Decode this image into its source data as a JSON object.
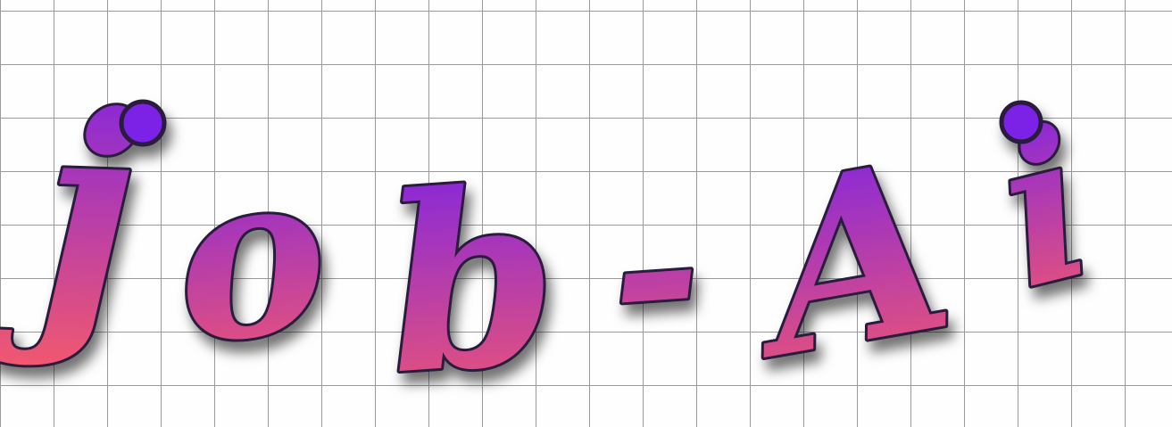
{
  "logo": {
    "text": "job-Ai",
    "letters": [
      {
        "char": "j"
      },
      {
        "char": "o"
      },
      {
        "char": "b"
      },
      {
        "char": "-"
      },
      {
        "char": "A"
      },
      {
        "char": "i"
      }
    ]
  },
  "colors": {
    "letter_gradient_top": "#7b22e6",
    "letter_gradient_bottom": "#f2596e",
    "letter_outline": "#2a1b3d",
    "grid_lines": "#9a9a9a",
    "background": "#fefefe"
  }
}
